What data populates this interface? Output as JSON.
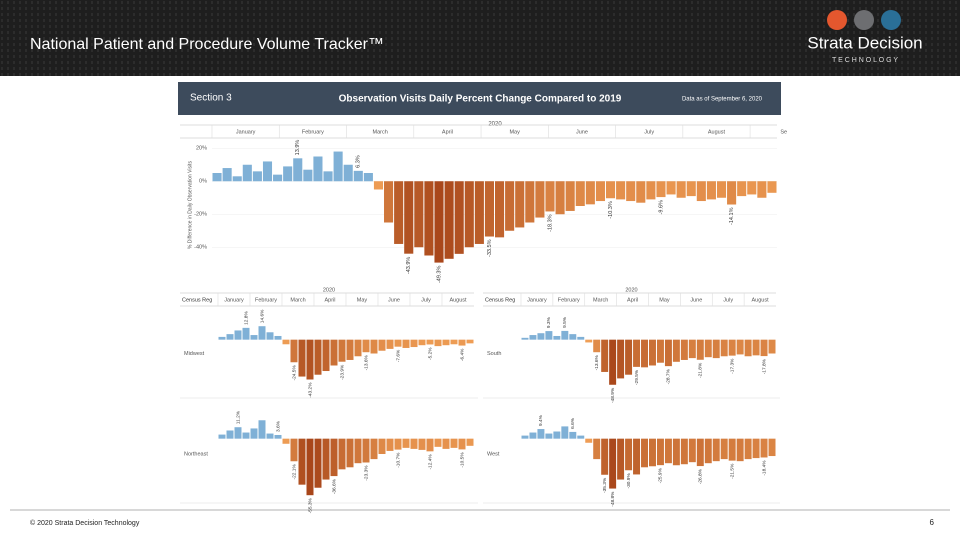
{
  "header": {
    "title": "National Patient and Procedure Volume Tracker™",
    "logo": "Strata Decision",
    "logo_sub": "T E C H N O L O G Y"
  },
  "dashboard": {
    "section": "Section 3",
    "title": "Observation Visits Daily Percent Change Compared to 2019",
    "as_of": "Data as of September 6, 2020",
    "main": {
      "type": "bar",
      "year": "2020",
      "months": [
        "January",
        "February",
        "March",
        "April",
        "May",
        "June",
        "July",
        "August",
        "Se"
      ],
      "y_label": "% Difference in Daily Observation Visits",
      "ylim": [
        -55,
        25
      ],
      "yticks": [
        {
          "value": 20,
          "label": "20%"
        },
        {
          "value": 0,
          "label": "0%"
        },
        {
          "value": -20,
          "label": "-20%"
        },
        {
          "value": -40,
          "label": "-40%"
        }
      ],
      "positive_color": "#7fb0d6",
      "negative_colors": [
        "#f5a55a",
        "#a8461a"
      ],
      "values": [
        5,
        8,
        3,
        10,
        6,
        12,
        4,
        9,
        13.9,
        7,
        15,
        6,
        18,
        10,
        6.3,
        5,
        -5,
        -25,
        -38,
        -43.9,
        -40,
        -45,
        -49.3,
        -47,
        -44,
        -40,
        -38,
        -33.5,
        -34,
        -30,
        -28,
        -25,
        -22,
        -18.3,
        -20,
        -18,
        -15,
        -14,
        -12,
        -10.3,
        -11,
        -12,
        -13,
        -11,
        -9.6,
        -8,
        -10,
        -9,
        -12,
        -11,
        -10,
        -14.1,
        -9,
        -8,
        -10,
        -7
      ],
      "value_labels": [
        null,
        null,
        null,
        null,
        null,
        null,
        null,
        null,
        "13.9%",
        null,
        null,
        null,
        null,
        null,
        "6.3%",
        null,
        null,
        null,
        null,
        "-43.9%",
        null,
        null,
        "-49.3%",
        null,
        null,
        null,
        null,
        "-33.5%",
        null,
        null,
        null,
        null,
        null,
        "-18.3%",
        null,
        null,
        null,
        null,
        null,
        "-10.3%",
        null,
        null,
        null,
        null,
        "-9.6%",
        null,
        null,
        null,
        null,
        null,
        null,
        "-14.1%",
        null,
        null,
        null,
        null
      ]
    },
    "panels": [
      {
        "type": "bar",
        "year": "2020",
        "header": "Census Reg",
        "months": [
          "January",
          "February",
          "March",
          "April",
          "May",
          "June",
          "July",
          "August"
        ],
        "name": "Midwest",
        "ylim": [
          -60,
          30
        ],
        "values": [
          3,
          6,
          10,
          12.8,
          5,
          14.6,
          8,
          4,
          -5,
          -24.5,
          -40,
          -43.2,
          -38,
          -34,
          -28,
          -23.9,
          -22,
          -18,
          -13.6,
          -15,
          -12,
          -10,
          -7.6,
          -9,
          -8,
          -6,
          -5.2,
          -7,
          -6,
          -5,
          -6.4,
          -4
        ],
        "value_labels": [
          null,
          null,
          null,
          "12.8%",
          null,
          "14.6%",
          null,
          null,
          null,
          "-24.5%",
          null,
          "-43.2%",
          null,
          null,
          null,
          "-23.9%",
          null,
          null,
          "-13.6%",
          null,
          null,
          null,
          "-7.6%",
          null,
          null,
          null,
          "-5.2%",
          null,
          null,
          null,
          "-6.4%",
          null
        ]
      },
      {
        "type": "bar",
        "year": "2020",
        "header": "Census Reg",
        "months": [
          "January",
          "February",
          "March",
          "April",
          "May",
          "June",
          "July",
          "August"
        ],
        "name": "South",
        "ylim": [
          -60,
          30
        ],
        "values": [
          2,
          5,
          7,
          9.3,
          4,
          9.5,
          6,
          3,
          -3,
          -13.6,
          -35,
          -48.9,
          -42,
          -38,
          -29.5,
          -30,
          -28,
          -25,
          -28.7,
          -24,
          -22,
          -20,
          -21.8,
          -19,
          -20,
          -18,
          -17.3,
          -16,
          -18,
          -17,
          -17.8,
          -15
        ],
        "value_labels": [
          null,
          null,
          null,
          "9.3%",
          null,
          "9.5%",
          null,
          null,
          null,
          "-13.6%",
          null,
          "-48.9%",
          null,
          null,
          "-29.5%",
          null,
          null,
          null,
          "-28.7%",
          null,
          null,
          null,
          "-21.8%",
          null,
          null,
          null,
          "-17.3%",
          null,
          null,
          null,
          "-17.8%",
          null
        ]
      },
      {
        "type": "bar",
        "name": "Northeast",
        "ylim": [
          -60,
          30
        ],
        "values": [
          4,
          8,
          11.2,
          6,
          10,
          18,
          5,
          3.6,
          -5,
          -22.1,
          -45,
          -55.3,
          -48,
          -40,
          -36.6,
          -30,
          -28,
          -24,
          -23.3,
          -20,
          -15,
          -12,
          -10.7,
          -9,
          -10,
          -11,
          -12.4,
          -8,
          -10,
          -9,
          -10.5,
          -7
        ],
        "value_labels": [
          null,
          null,
          "11.2%",
          null,
          null,
          null,
          null,
          "3.6%",
          null,
          "-22.1%",
          null,
          "-55.3%",
          null,
          null,
          "-36.6%",
          null,
          null,
          null,
          "-23.3%",
          null,
          null,
          null,
          "-10.7%",
          null,
          null,
          null,
          "-12.4%",
          null,
          null,
          null,
          "-10.5%",
          null
        ]
      },
      {
        "type": "bar",
        "name": "West",
        "ylim": [
          -60,
          30
        ],
        "values": [
          3,
          6,
          9.4,
          5,
          7,
          12,
          6.6,
          3,
          -4,
          -20,
          -35.3,
          -48.8,
          -40,
          -30.9,
          -35,
          -28,
          -27,
          -25.9,
          -24,
          -26,
          -25,
          -23,
          -26.8,
          -24,
          -22,
          -20,
          -21.5,
          -22,
          -20,
          -19,
          -18.4,
          -17
        ],
        "value_labels": [
          null,
          null,
          "9.4%",
          null,
          null,
          null,
          "6.6%",
          null,
          null,
          null,
          "-35.3%",
          "-48.8%",
          null,
          "-30.9%",
          null,
          null,
          null,
          "-25.9%",
          null,
          null,
          null,
          null,
          "-26.8%",
          null,
          null,
          null,
          "-21.5%",
          null,
          null,
          null,
          "-18.4%",
          null
        ]
      }
    ]
  },
  "footer": {
    "copyright": "© 2020 Strata Decision Technology",
    "page": "6"
  }
}
